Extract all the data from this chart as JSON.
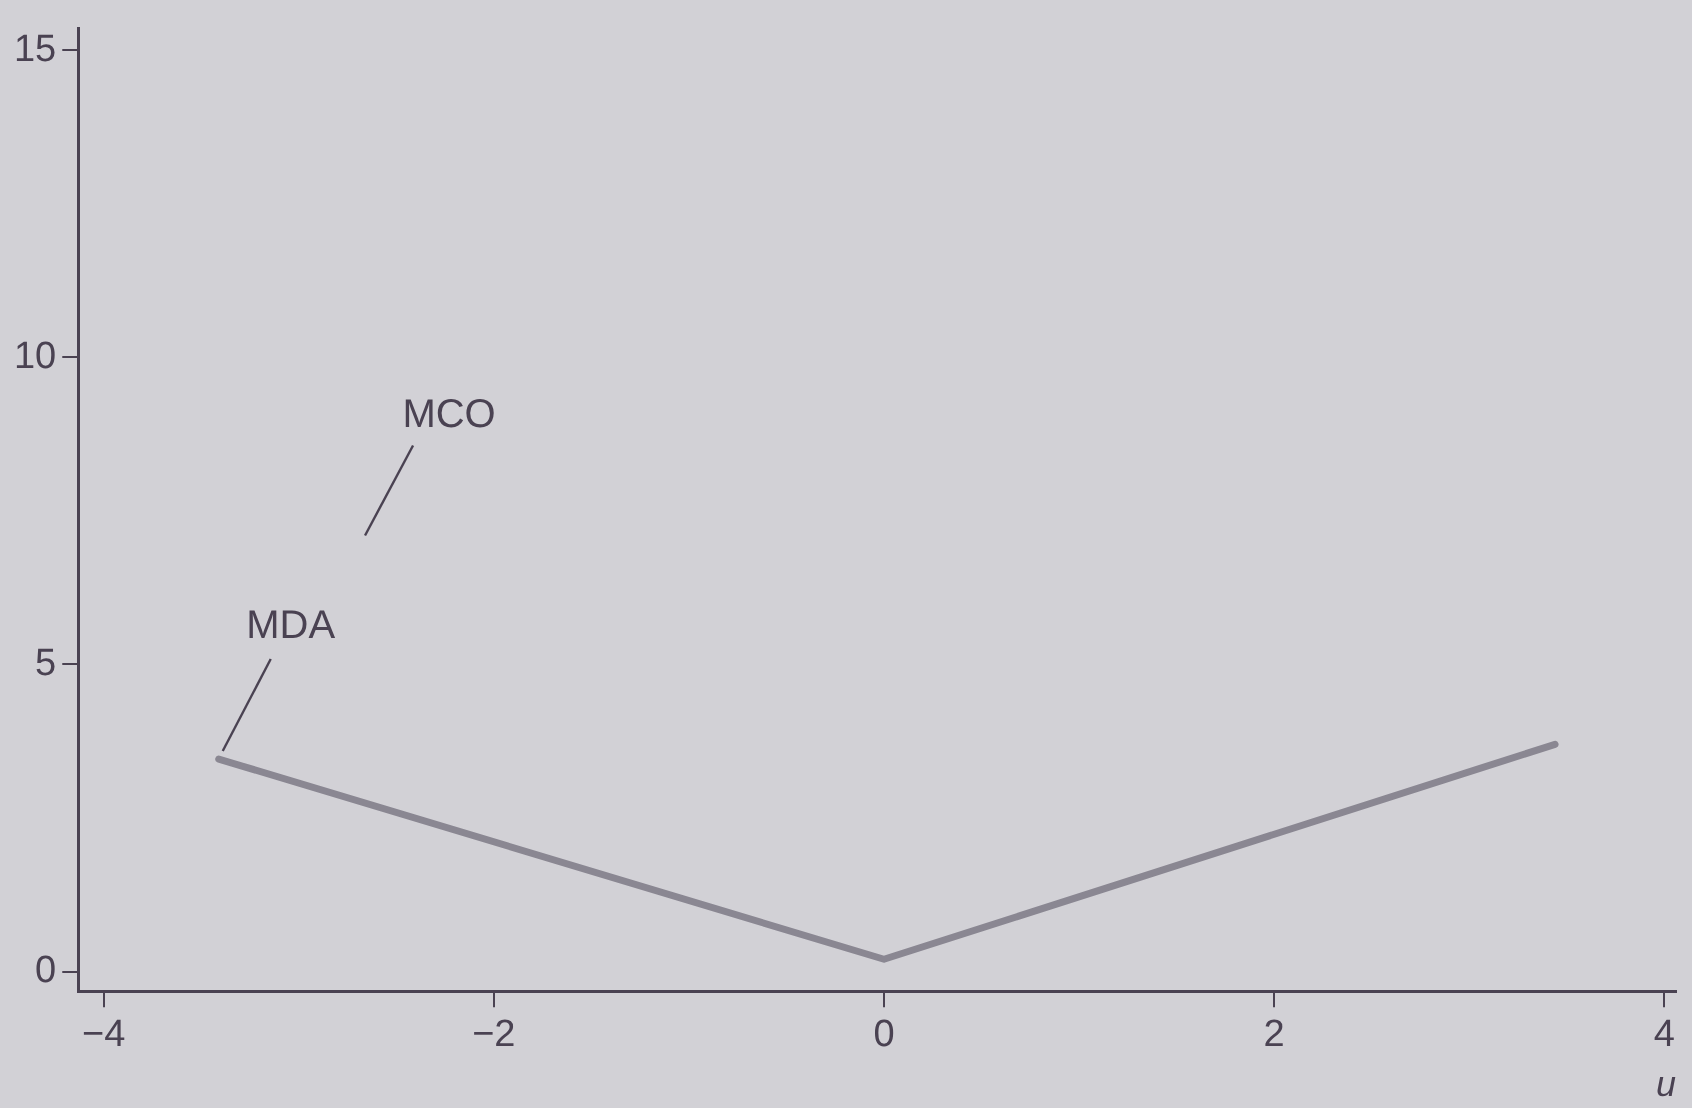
{
  "chart_data": {
    "type": "line",
    "xlabel": "u",
    "annotations": [
      "MCO"
    ],
    "series": [
      {
        "name": "MDA",
        "color": "#8a8792",
        "x": [
          -3.41,
          0,
          3.44
        ],
        "values": [
          3.46,
          0.2,
          3.7
        ]
      }
    ],
    "xlim": [
      -4.13,
      4.06
    ],
    "ylim": [
      -0.32,
      15.35
    ],
    "xticks": [
      -4,
      -2,
      0,
      2,
      4
    ],
    "yticks": [
      0,
      5,
      10,
      15
    ],
    "grid": false,
    "legend": false,
    "marker": "none",
    "line_style": "solid"
  }
}
